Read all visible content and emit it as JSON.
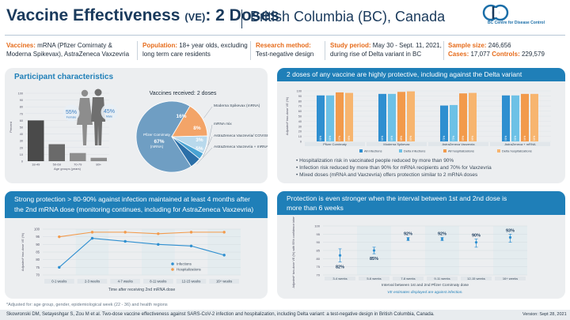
{
  "header": {
    "title": "Vaccine Effectiveness",
    "title_abbr": "(VE)",
    "title_suffix": ": 2 Doses",
    "subtitle": "British Columbia (BC), Canada",
    "logo_text": "BC Centre for Disease Control"
  },
  "info": {
    "vaccines_label": "Vaccines:",
    "vaccines_text_1": "mRNA (Pfizer Comirnaty &",
    "vaccines_text_2": "Moderna Spikevax), AstraZeneca Vaxzevria",
    "population_label": "Population:",
    "population_text_1": "18+ year olds, excluding",
    "population_text_2": "long term care residents",
    "method_label": "Research method:",
    "method_text": "Test-negative design",
    "period_label": "Study period:",
    "period_text_1": "May 30 - Sept. 11, 2021,",
    "period_text_2": "during rise of Delta variant in BC",
    "sample_label": "Sample size:",
    "sample_value": "246,656",
    "cases_label": "Cases:",
    "cases_value": "17,077",
    "controls_label": "Controls:",
    "controls_value": "229,579"
  },
  "panel1": {
    "title": "Participant characteristics",
    "female_pct": "55%",
    "female_label": "Female",
    "male_pct": "45%",
    "male_label": "Male",
    "bar_ylabel": "Percent",
    "bar_xlabel": "Age groups (years)",
    "pie_title": "Vaccines received: 2 doses",
    "pie_labels": [
      "Moderna Spikevax (mRNA)",
      "mRNA mix",
      "AstraZeneca Vaxzevria/ COVISHIELD",
      "AstraZeneca Vaxzevria + mRNA",
      "Pfizer Comirnaty (mRNA)"
    ]
  },
  "panel2": {
    "title": "2 doses of any vaccine are highly protective, including against the Delta variant",
    "ylabel": "Adjusted* two-dose VE (%)",
    "bullets": [
      "Hospitalization risk in vaccinated people reduced by more than 90%",
      "Infection risk reduced by more than 90% for mRNA recipients and 70% for Vaxzevria",
      "Mixed doses (mRNA and Vaxzevria) offers protection similar to 2 mRNA doses"
    ]
  },
  "panel3": {
    "title_line1": "Strong protection > 80-90% against infection maintained at least 4 months after",
    "title_line2": "the 2nd mRNA dose (monitoring continues, including for AstraZeneca Vaxzevria)",
    "ylabel": "Adjusted* two-dose VE (%)",
    "xlabel": "Time after receiving 2nd mRNA dose"
  },
  "panel4": {
    "title_line1": "Protection is even stronger when the interval between 1st and 2nd dose is",
    "title_line2": "more than 6 weeks",
    "ylabel": "Adjusted* two-dose VE (%) with 95% confidence interval",
    "xlabel": "Interval between 1st and 2nd Pfizer Comirnaty dose",
    "note": "VE estimates displayed are against infection."
  },
  "footer": {
    "footnote": "*Adjusted for: age group, gender, epidemiological week (22 - 36) and health regions",
    "citation": "Skowronski DM, Setayeshgar S, Zou M et al. Two-dose vaccine effectiveness against SARS-CoV-2 infection and hospitalization, including Delta variant: a test-negative design in British Columbia, Canada.",
    "version": "Version: Sept 28, 2021"
  },
  "colors": {
    "primary": "#1f7fb8",
    "orange": "#e66b1a",
    "navy": "#1a3a5c",
    "infection": "#2f8fd0",
    "delta": "#6dc1e6",
    "hosp": "#f29a4b",
    "delta_hosp": "#f7b56f"
  },
  "chart_data": [
    {
      "type": "bar",
      "title": "",
      "categories": [
        "18-49",
        "50-69",
        "70-79",
        "80+"
      ],
      "values": [
        60,
        25,
        12,
        5
      ],
      "xlabel": "Age groups (years)",
      "ylabel": "Percent",
      "yticks": [
        "0",
        "10",
        "20",
        "30",
        "40",
        "50",
        "60",
        "70",
        "80",
        "90",
        "100"
      ],
      "ylim": [
        0,
        100
      ]
    },
    {
      "type": "pie",
      "title": "Vaccines received: 2 doses",
      "categories": [
        "Pfizer Comirnaty (mRNA)",
        "Moderna Spikevax (mRNA)",
        "mRNA mix",
        "AstraZeneca Vaxzevria/ COVISHIELD",
        "AstraZeneca Vaxzevria + mRNA"
      ],
      "values": [
        67,
        16,
        8,
        3,
        5
      ],
      "value_labels": [
        "67%",
        "16%",
        "8%",
        "3%",
        "5%"
      ]
    },
    {
      "type": "bar",
      "title": "2 doses of any vaccine are highly protective, including against the Delta variant",
      "categories": [
        "Pfizer Comirnaty",
        "Moderna Spikevax",
        "AstraZeneca Vaxzevria",
        "AstraZeneca + mRNA"
      ],
      "series": [
        {
          "name": "All infections",
          "values": [
            91,
            94,
            71,
            91
          ]
        },
        {
          "name": "Delta infections",
          "values": [
            91,
            94,
            72,
            91
          ]
        },
        {
          "name": "All hospitalizations",
          "values": [
            97,
            98,
            95,
            94
          ]
        },
        {
          "name": "Delta hospitalizations",
          "values": [
            96,
            99,
            96,
            94
          ]
        }
      ],
      "value_labels": [
        [
          "91%",
          "94%",
          "71%",
          "91%"
        ],
        [
          "91%",
          "94%",
          "72%",
          "91%"
        ],
        [
          "97%",
          "98%",
          "95%",
          "94%"
        ],
        [
          "96%",
          "99%",
          "96%",
          "94%"
        ]
      ],
      "ylabel": "Adjusted* two-dose VE (%)",
      "yticks": [
        "0",
        "10",
        "20",
        "30",
        "40",
        "50",
        "60",
        "70",
        "80",
        "90",
        "100"
      ],
      "ylim": [
        0,
        100
      ]
    },
    {
      "type": "line",
      "title": "",
      "categories": [
        "0-1 weeks",
        "2-3 weeks",
        "4-7 weeks",
        "8-11 weeks",
        "12-15 weeks",
        "16+ weeks"
      ],
      "series": [
        {
          "name": "Infections",
          "values": [
            75,
            94,
            92,
            90,
            89,
            83
          ]
        },
        {
          "name": "Hospitalizations",
          "values": [
            95,
            98,
            98,
            97,
            98,
            98
          ]
        }
      ],
      "xlabel": "Time after receiving 2nd mRNA dose",
      "ylabel": "Adjusted* two-dose VE (%)",
      "yticks": [
        "70",
        "75",
        "80",
        "85",
        "90",
        "95",
        "100"
      ],
      "ylim": [
        70,
        100
      ]
    },
    {
      "type": "scatter",
      "title": "",
      "categories": [
        "3-4 weeks",
        "5-6 weeks",
        "7-8 weeks",
        "9-11 weeks",
        "12-15 weeks",
        "16+ weeks"
      ],
      "values": [
        82,
        85,
        92,
        92,
        90,
        93
      ],
      "value_labels": [
        "82%",
        "85%",
        "92%",
        "92%",
        "90%",
        "93%"
      ],
      "ci_low": [
        78,
        83,
        91,
        91,
        87,
        90
      ],
      "ci_high": [
        86,
        87,
        93,
        93,
        92,
        95
      ],
      "xlabel": "Interval between 1st and 2nd Pfizer Comirnaty dose",
      "ylabel": "Adjusted* two-dose VE (%) with 95% confidence interval",
      "yticks": [
        "70",
        "75",
        "80",
        "85",
        "90",
        "95",
        "100"
      ],
      "ylim": [
        70,
        100
      ]
    }
  ]
}
